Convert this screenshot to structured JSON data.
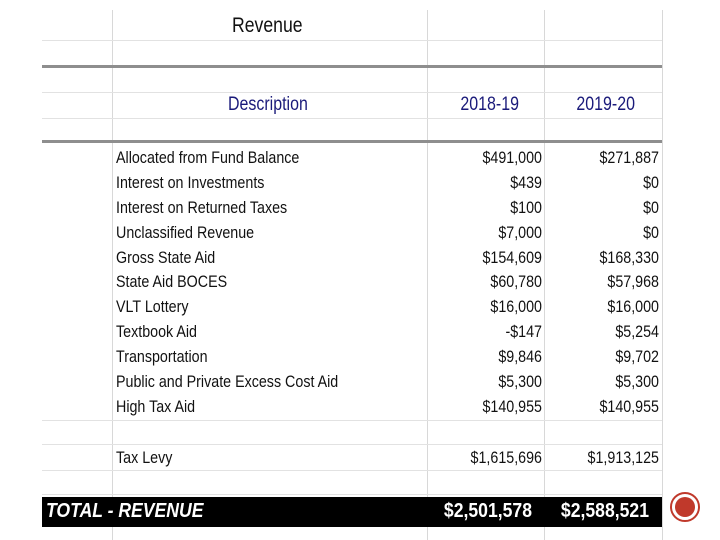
{
  "title": "Revenue",
  "headers": {
    "description": "Description",
    "col1": "2018-19",
    "col2": "2019-20"
  },
  "rows": [
    {
      "label": "Allocated from Fund Balance",
      "v1": "$491,000",
      "v2": "$271,887"
    },
    {
      "label": "Interest on Investments",
      "v1": "$439",
      "v2": "$0"
    },
    {
      "label": "Interest on Returned Taxes",
      "v1": "$100",
      "v2": "$0"
    },
    {
      "label": "Unclassified Revenue",
      "v1": "$7,000",
      "v2": "$0"
    },
    {
      "label": "Gross State Aid",
      "v1": "$154,609",
      "v2": "$168,330"
    },
    {
      "label": "State Aid BOCES",
      "v1": "$60,780",
      "v2": "$57,968"
    },
    {
      "label": "VLT Lottery",
      "v1": "$16,000",
      "v2": "$16,000"
    },
    {
      "label": "Textbook Aid",
      "v1": "-$147",
      "v2": "$5,254"
    },
    {
      "label": "Transportation",
      "v1": "$9,846",
      "v2": "$9,702"
    },
    {
      "label": "Public and Private Excess Cost Aid",
      "v1": "$5,300",
      "v2": "$5,300"
    },
    {
      "label": "High Tax Aid",
      "v1": "$140,955",
      "v2": "$140,955"
    }
  ],
  "tax_levy": {
    "label": "Tax Levy",
    "v1": "$1,615,696",
    "v2": "$1,913,125"
  },
  "total": {
    "label": "TOTAL - REVENUE",
    "v1": "$2,501,578",
    "v2": "$2,588,521"
  },
  "accent_color": "#c0392b"
}
